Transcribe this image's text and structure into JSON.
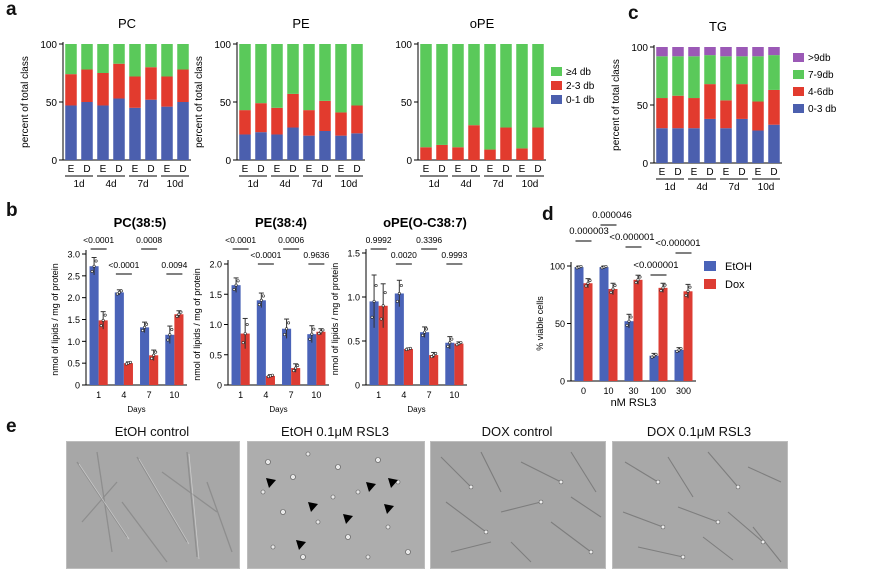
{
  "panel_labels": {
    "a": "a",
    "b": "b",
    "c": "c",
    "d": "d",
    "e": "e"
  },
  "colors": {
    "blue": "#4b5fae",
    "red": "#e23b2e",
    "green": "#5ac95a",
    "purple": "#9b59b6",
    "bar_blue": "#4a63b8",
    "bar_red": "#dd3c33"
  },
  "stack_x_e": "E",
  "stack_x_d": "D",
  "stack_groups": [
    "1d",
    "4d",
    "7d",
    "10d"
  ],
  "stack_ylabel": "percent of total class",
  "legend_a": [
    "≥4 db",
    "2-3 db",
    "0-1 db"
  ],
  "legend_c": [
    ">9db",
    "7-9db",
    "4-6db",
    "0-3 db"
  ],
  "bar_ylabel": "nmol of lipids / mg of protein",
  "bar_xlabel": "Days",
  "d_xlabel": "nM RSL3",
  "d_ylabel": "% viable cells",
  "d_legend": [
    "EtOH",
    "Dox"
  ],
  "micro_titles": [
    "EtOH control",
    "EtOH 0.1μM RSL3",
    "DOX control",
    "DOX 0.1μM RSL3"
  ],
  "chart_data": [
    {
      "type": "bar",
      "stacked": true,
      "title": "PC",
      "ylabel": "percent of total class",
      "ylim": [
        0,
        100
      ],
      "categories": [
        "E",
        "D",
        "E",
        "D",
        "E",
        "D",
        "E",
        "D"
      ],
      "groups": [
        "1d",
        "4d",
        "7d",
        "10d"
      ],
      "series": [
        {
          "name": "0-1 db",
          "color": "#4b5fae",
          "values": [
            47,
            50,
            47,
            53,
            45,
            52,
            46,
            50
          ]
        },
        {
          "name": "2-3 db",
          "color": "#e23b2e",
          "values": [
            27,
            28,
            28,
            30,
            27,
            28,
            26,
            28
          ]
        },
        {
          "name": "≥4 db",
          "color": "#5ac95a",
          "values": [
            26,
            22,
            25,
            17,
            28,
            20,
            28,
            22
          ]
        }
      ]
    },
    {
      "type": "bar",
      "stacked": true,
      "title": "PE",
      "ylabel": "percent of total class",
      "ylim": [
        0,
        100
      ],
      "categories": [
        "E",
        "D",
        "E",
        "D",
        "E",
        "D",
        "E",
        "D"
      ],
      "groups": [
        "1d",
        "4d",
        "7d",
        "10d"
      ],
      "series": [
        {
          "name": "0-1 db",
          "color": "#4b5fae",
          "values": [
            22,
            24,
            22,
            28,
            21,
            25,
            21,
            23
          ]
        },
        {
          "name": "2-3 db",
          "color": "#e23b2e",
          "values": [
            21,
            25,
            23,
            29,
            22,
            26,
            20,
            24
          ]
        },
        {
          "name": "≥4 db",
          "color": "#5ac95a",
          "values": [
            57,
            51,
            55,
            43,
            57,
            49,
            59,
            53
          ]
        }
      ]
    },
    {
      "type": "bar",
      "stacked": true,
      "title": "oPE",
      "ylabel": "",
      "ylim": [
        0,
        100
      ],
      "categories": [
        "E",
        "D",
        "E",
        "D",
        "E",
        "D",
        "E",
        "D"
      ],
      "groups": [
        "1d",
        "4d",
        "7d",
        "10d"
      ],
      "series": [
        {
          "name": "0-1 db",
          "color": "#4b5fae",
          "values": [
            0,
            0,
            0,
            0,
            0,
            0,
            0,
            0
          ]
        },
        {
          "name": "2-3 db",
          "color": "#e23b2e",
          "values": [
            11,
            13,
            11,
            30,
            9,
            28,
            10,
            28
          ]
        },
        {
          "name": "≥4 db",
          "color": "#5ac95a",
          "values": [
            89,
            87,
            89,
            70,
            91,
            72,
            90,
            72
          ]
        }
      ]
    },
    {
      "type": "bar",
      "stacked": true,
      "title": "TG",
      "ylabel": "percent of total class",
      "ylim": [
        0,
        100
      ],
      "categories": [
        "E",
        "D",
        "E",
        "D",
        "E",
        "D",
        "E",
        "D"
      ],
      "groups": [
        "1d",
        "4d",
        "7d",
        "10d"
      ],
      "series": [
        {
          "name": "0-3 db",
          "color": "#4b5fae",
          "values": [
            30,
            30,
            30,
            38,
            30,
            38,
            28,
            33
          ]
        },
        {
          "name": "4-6db",
          "color": "#e23b2e",
          "values": [
            26,
            28,
            26,
            30,
            24,
            30,
            25,
            30
          ]
        },
        {
          "name": "7-9db",
          "color": "#5ac95a",
          "values": [
            36,
            34,
            36,
            25,
            38,
            24,
            39,
            30
          ]
        },
        {
          "name": ">9db",
          "color": "#9b59b6",
          "values": [
            8,
            8,
            8,
            7,
            8,
            8,
            8,
            7
          ]
        }
      ]
    },
    {
      "type": "bar",
      "title": "PC(38:5)",
      "xlabel": "Days",
      "ylabel": "nmol of lipids / mg of protein",
      "categories": [
        "1",
        "4",
        "7",
        "10"
      ],
      "ylim": [
        0,
        3.0
      ],
      "yticks": [
        0,
        0.5,
        1.0,
        1.5,
        2.0,
        2.5,
        3.0
      ],
      "series": [
        {
          "name": "EtOH",
          "values": [
            2.72,
            2.12,
            1.32,
            1.15
          ],
          "err": [
            0.2,
            0.06,
            0.12,
            0.2
          ]
        },
        {
          "name": "Dox",
          "values": [
            1.48,
            0.5,
            0.68,
            1.62
          ],
          "err": [
            0.2,
            0.03,
            0.12,
            0.08
          ]
        }
      ],
      "pvalues": [
        "<0.0001",
        "<0.0001",
        "0.0008",
        "0.0094"
      ]
    },
    {
      "type": "bar",
      "title": "PE(38:4)",
      "xlabel": "Days",
      "ylabel": "nmol of lipids / mg of protein",
      "categories": [
        "1",
        "4",
        "7",
        "10"
      ],
      "ylim": [
        0,
        2.0
      ],
      "yticks": [
        0,
        0.5,
        1.0,
        1.5,
        2.0
      ],
      "series": [
        {
          "name": "EtOH",
          "values": [
            1.65,
            1.4,
            0.93,
            0.84
          ],
          "err": [
            0.12,
            0.12,
            0.16,
            0.14
          ]
        },
        {
          "name": "Dox",
          "values": [
            0.85,
            0.15,
            0.28,
            0.88
          ],
          "err": [
            0.25,
            0.02,
            0.07,
            0.05
          ]
        }
      ],
      "pvalues": [
        "<0.0001",
        "<0.0001",
        "0.0006",
        "0.9636"
      ]
    },
    {
      "type": "bar",
      "title": "oPE(O-C38:7)",
      "xlabel": "Days",
      "ylabel": "nmol of lipids / mg of protein",
      "categories": [
        "1",
        "4",
        "7",
        "10"
      ],
      "ylim": [
        0,
        1.5
      ],
      "yticks": [
        0,
        0.5,
        1.0,
        1.5
      ],
      "series": [
        {
          "name": "EtOH",
          "values": [
            0.95,
            1.04,
            0.6,
            0.48
          ],
          "err": [
            0.3,
            0.15,
            0.06,
            0.07
          ]
        },
        {
          "name": "Dox",
          "values": [
            0.9,
            0.41,
            0.34,
            0.47
          ],
          "err": [
            0.25,
            0.01,
            0.03,
            0.02
          ]
        }
      ],
      "pvalues": [
        "0.9992",
        "0.0020",
        "0.3396",
        "0.9993"
      ]
    },
    {
      "type": "bar",
      "title": "",
      "xlabel": "nM RSL3",
      "ylabel": "% viable cells",
      "categories": [
        "0",
        "10",
        "30",
        "100",
        "300"
      ],
      "ylim": [
        0,
        100
      ],
      "yticks": [
        0,
        50,
        100
      ],
      "series": [
        {
          "name": "EtOH",
          "values": [
            99,
            99,
            52,
            22,
            27
          ],
          "err": [
            1,
            1,
            6,
            2,
            2
          ]
        },
        {
          "name": "Dox",
          "values": [
            85,
            80,
            88,
            81,
            78
          ],
          "err": [
            4,
            5,
            4,
            4,
            6
          ]
        }
      ],
      "pvalues": [
        "0.000003",
        "0.000046",
        "<0.000001",
        "<0.000001",
        "<0.000001"
      ]
    }
  ]
}
